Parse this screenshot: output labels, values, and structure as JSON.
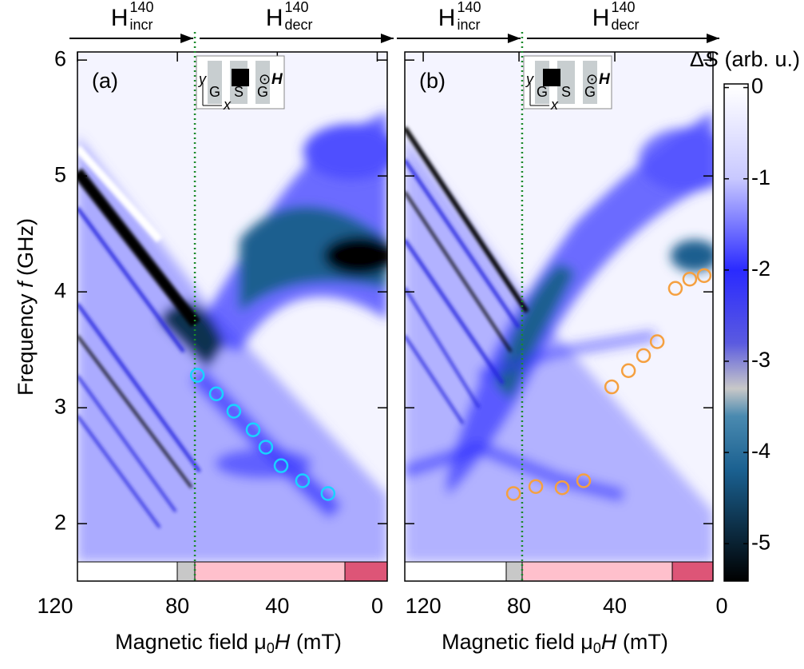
{
  "chart_data": [
    {
      "type": "scatter",
      "label": "(a)",
      "xlim": [
        120,
        -4
      ],
      "ylim": [
        1.67,
        6.07
      ],
      "xticks": [
        120,
        80,
        40,
        0
      ],
      "yticks": [
        2,
        3,
        4,
        5,
        6
      ],
      "ylabel": [
        "Frequency ",
        "f",
        " (GHz)"
      ],
      "xlabel": [
        "Magnetic field μ",
        "0",
        "H",
        " (mT)"
      ],
      "vline": 73,
      "annotations": {
        "incr": [
          "H",
          "140",
          "incr"
        ],
        "decr": [
          "H",
          "140",
          "decr"
        ]
      },
      "inset": [
        "y",
        "x",
        "G",
        "S",
        "G",
        "⊙",
        "H"
      ],
      "series": [
        {
          "color": "#19d3ff",
          "x": [
            72,
            64.4,
            57.4,
            49.7,
            44.6,
            38.5,
            29.9,
            19.7
          ],
          "values": [
            3.28,
            3.12,
            2.97,
            2.81,
            2.66,
            2.5,
            2.37,
            2.26
          ]
        }
      ]
    },
    {
      "type": "scatter",
      "label": "(b)",
      "xlim": [
        127.7,
        -1
      ],
      "ylim": [
        1.67,
        6.07
      ],
      "xticks": [
        120,
        80,
        40,
        0
      ],
      "yticks": [
        2,
        3,
        4,
        5,
        6
      ],
      "xlabel": [
        "Magnetic field μ",
        "0",
        "H",
        " (mT)"
      ],
      "vline": 78.7,
      "annotations": {
        "incr": [
          "H",
          "140",
          "incr"
        ],
        "decr": [
          "H",
          "140",
          "decr"
        ]
      },
      "inset": [
        "y",
        "x",
        "G",
        "S",
        "G",
        "⊙",
        "H"
      ],
      "series": [
        {
          "color": "#f5a040",
          "x": [
            82.3,
            73,
            62,
            53,
            41.3,
            34.3,
            28,
            22.3,
            14.7,
            8.7,
            2.7
          ],
          "values": [
            2.26,
            2.32,
            2.31,
            2.37,
            3.18,
            3.32,
            3.45,
            3.57,
            4.03,
            4.11,
            4.14
          ]
        }
      ]
    },
    {
      "type": "colorbar",
      "label": [
        "Δ",
        "S",
        " (arb. u.)"
      ],
      "clim": [
        0.04,
        -5.41
      ],
      "ticks": [
        0,
        -1,
        -2,
        -3,
        -4,
        -5
      ],
      "colorscale": [
        [
          0,
          "#ffffff"
        ],
        [
          -1,
          "#c8c8ff"
        ],
        [
          -2,
          "#2a2aff"
        ],
        [
          -2.8,
          "#5a5ae0"
        ],
        [
          -3.3,
          "#c8c8c8"
        ],
        [
          -3.6,
          "#4a8ab0"
        ],
        [
          -4.2,
          "#1a6090"
        ],
        [
          -5.41,
          "#000000"
        ]
      ]
    }
  ]
}
